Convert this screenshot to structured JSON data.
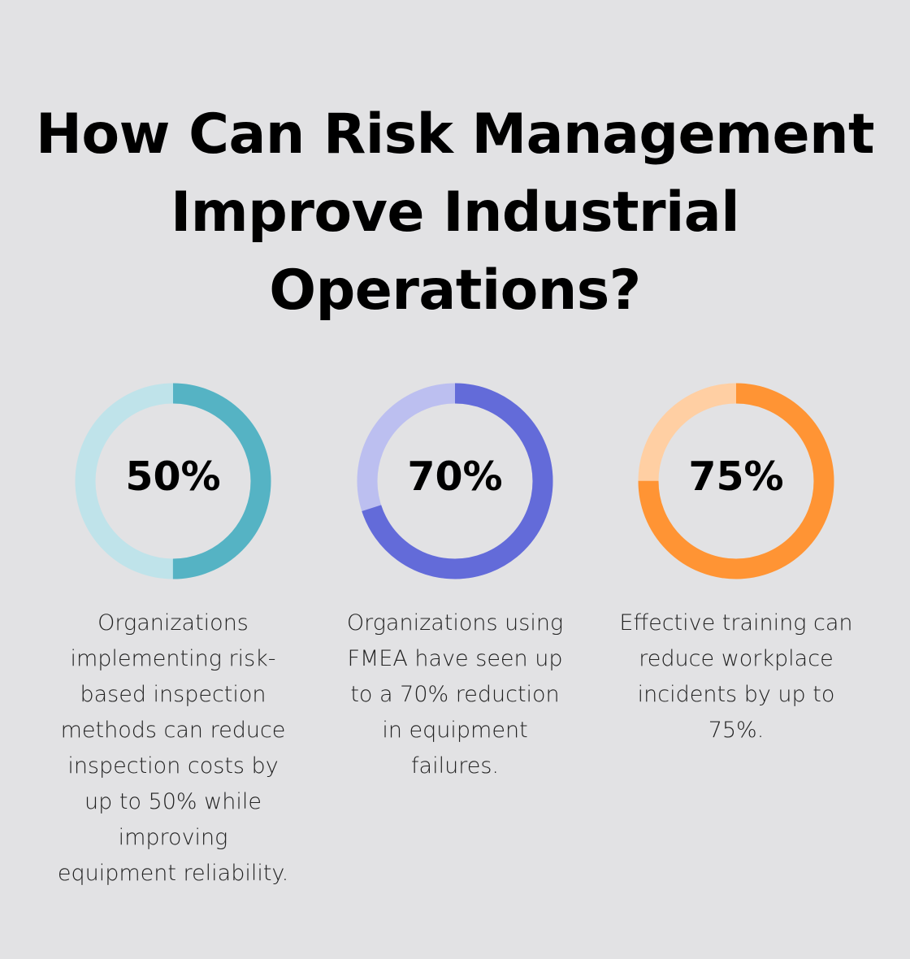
{
  "title": {
    "lines": [
      "How Can Risk Management",
      "Improve Industrial",
      "Operations?"
    ]
  },
  "chart_data": [
    {
      "type": "pie",
      "variant": "donut",
      "label": "50%",
      "value": 50,
      "max": 100,
      "colors": {
        "value": "#55b3c4",
        "remainder": "#bfe3ea"
      },
      "description_lines": [
        "Organizations",
        "implementing risk-",
        "based inspection",
        "methods can reduce",
        "inspection costs by",
        "up to 50% while",
        "improving",
        "equipment reliability."
      ]
    },
    {
      "type": "pie",
      "variant": "donut",
      "label": "70%",
      "value": 70,
      "max": 100,
      "colors": {
        "value": "#636bd9",
        "remainder": "#bcbff0"
      },
      "description_lines": [
        "Organizations using",
        "FMEA have seen up",
        "to a 70% reduction",
        "in equipment",
        "failures."
      ]
    },
    {
      "type": "pie",
      "variant": "donut",
      "label": "75%",
      "value": 75,
      "max": 100,
      "colors": {
        "value": "#ff9434",
        "remainder": "#ffcfa3"
      },
      "description_lines": [
        "Effective training can",
        "reduce workplace",
        "incidents by up to",
        "75%."
      ]
    }
  ]
}
